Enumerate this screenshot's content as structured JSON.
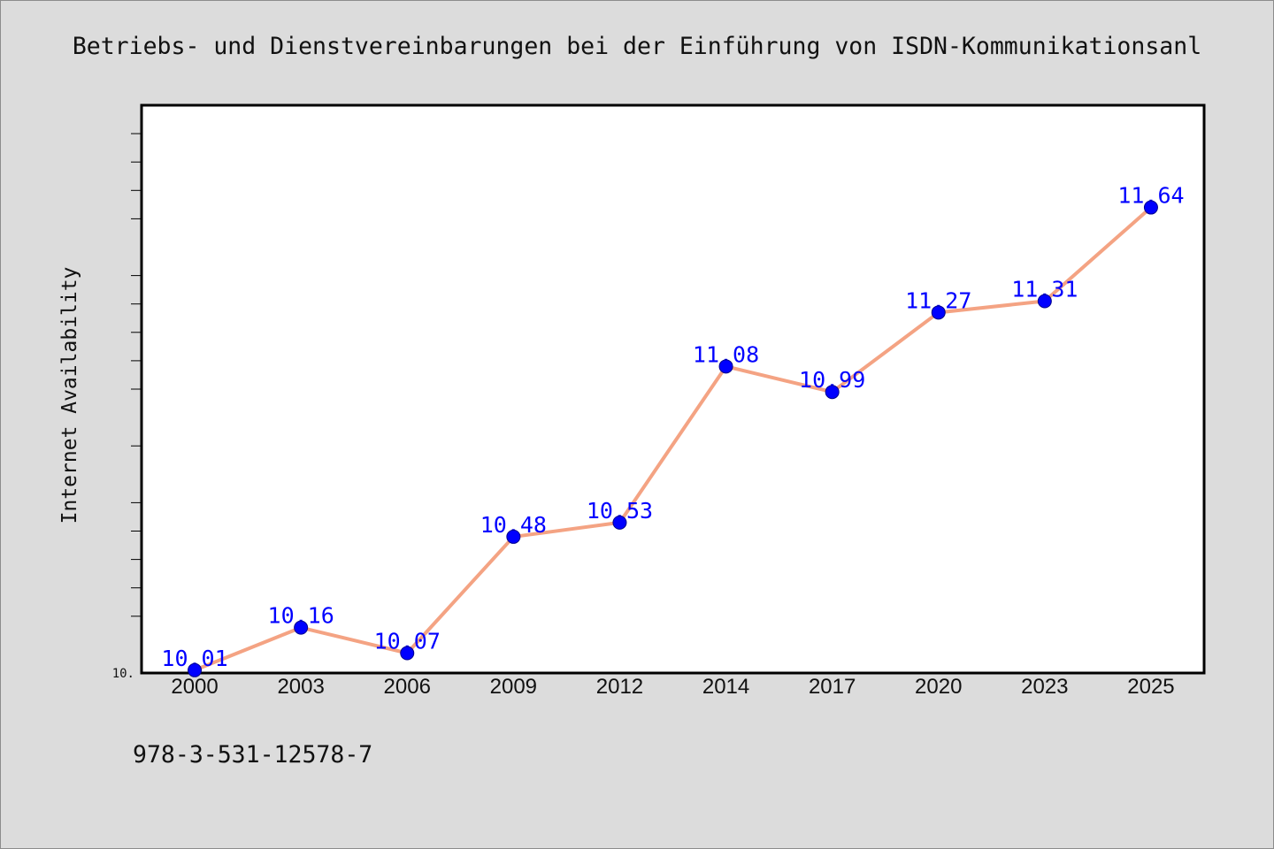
{
  "page": {
    "background": "#dcdcdc",
    "plot_background": "#ffffff"
  },
  "chart_data": {
    "type": "line",
    "title": "Betriebs- und Dienstvereinbarungen bei der Einführung von ISDN-Kommunikationsanl",
    "ylabel": "Internet Availability",
    "categories": [
      "2000",
      "2003",
      "2006",
      "2009",
      "2012",
      "2014",
      "2017",
      "2020",
      "2023",
      "2025"
    ],
    "values": [
      10.01,
      10.16,
      10.07,
      10.48,
      10.53,
      11.08,
      10.99,
      11.27,
      11.31,
      11.64
    ],
    "ylim": [
      10,
      12
    ],
    "y_tick_labels": [
      {
        "value": 10,
        "label": "10."
      }
    ],
    "data_labels": true,
    "grid": false,
    "legend": "none",
    "colors": {
      "line": "#f4a383",
      "marker": "#0000ff",
      "marker_edge": "#00008b",
      "data_label": "#0000ff"
    }
  },
  "footer_text": "978-3-531-12578-7"
}
